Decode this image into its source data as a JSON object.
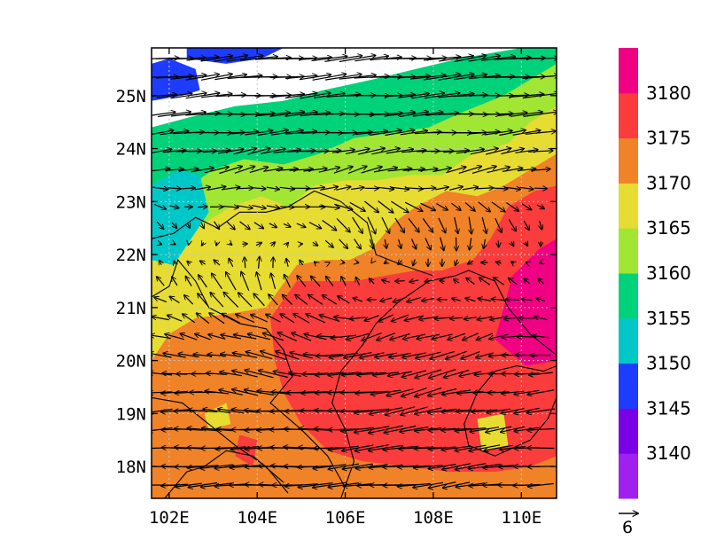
{
  "chart_data": {
    "type": "heatmap",
    "overlay": "wind-vectors",
    "xlim": [
      101.6,
      110.8
    ],
    "ylim": [
      17.4,
      25.9
    ],
    "x_ticks": [
      102,
      104,
      106,
      108,
      110
    ],
    "x_tick_labels": [
      "102E",
      "104E",
      "106E",
      "108E",
      "110E"
    ],
    "y_ticks": [
      18,
      19,
      20,
      21,
      22,
      23,
      24,
      25
    ],
    "y_tick_labels": [
      "18N",
      "19N",
      "20N",
      "21N",
      "22N",
      "23N",
      "24N",
      "25N"
    ],
    "grid": true,
    "colorbar": {
      "levels": [
        3135,
        3140,
        3145,
        3150,
        3155,
        3160,
        3165,
        3170,
        3175,
        3180,
        3185
      ],
      "colors": [
        "#a020f0",
        "#7a00e6",
        "#1e3cff",
        "#00c8c8",
        "#00d27a",
        "#a0e632",
        "#e6dc32",
        "#f08228",
        "#fa3c3c",
        "#f00082"
      ],
      "labels": [
        "3140",
        "3145",
        "3150",
        "3155",
        "3160",
        "3165",
        "3170",
        "3175",
        "3180"
      ]
    },
    "reference_vector": {
      "label": "6"
    },
    "field_regions": [
      {
        "value": 3157,
        "polygon": [
          [
            101.6,
            24.4
          ],
          [
            102.5,
            24.6
          ],
          [
            103.5,
            24.8
          ],
          [
            104.6,
            24.9
          ],
          [
            105.5,
            25.1
          ],
          [
            106.6,
            25.3
          ],
          [
            107.6,
            25.5
          ],
          [
            108.6,
            25.7
          ],
          [
            110.0,
            25.9
          ],
          [
            110.8,
            25.9
          ],
          [
            110.8,
            17.4
          ],
          [
            101.6,
            17.4
          ]
        ]
      },
      {
        "value": 3162,
        "polygon": [
          [
            101.6,
            23.1
          ],
          [
            102.3,
            23.2
          ],
          [
            103.0,
            23.6
          ],
          [
            103.7,
            23.8
          ],
          [
            104.6,
            23.7
          ],
          [
            105.4,
            23.9
          ],
          [
            106.2,
            24.2
          ],
          [
            107.1,
            24.3
          ],
          [
            107.9,
            24.4
          ],
          [
            108.7,
            24.7
          ],
          [
            109.6,
            25.0
          ],
          [
            110.2,
            25.3
          ],
          [
            110.8,
            25.6
          ],
          [
            110.8,
            17.4
          ],
          [
            101.6,
            17.4
          ]
        ]
      },
      {
        "value": 3167,
        "polygon": [
          [
            101.6,
            22.1
          ],
          [
            102.2,
            22.4
          ],
          [
            102.8,
            22.6
          ],
          [
            103.4,
            22.9
          ],
          [
            104.1,
            23.1
          ],
          [
            104.7,
            22.9
          ],
          [
            105.3,
            23.3
          ],
          [
            106.0,
            23.4
          ],
          [
            106.7,
            23.4
          ],
          [
            107.5,
            23.5
          ],
          [
            108.2,
            23.5
          ],
          [
            108.9,
            23.9
          ],
          [
            109.7,
            24.1
          ],
          [
            110.2,
            24.5
          ],
          [
            110.8,
            24.8
          ],
          [
            110.8,
            17.4
          ],
          [
            101.6,
            17.4
          ]
        ]
      },
      {
        "value": 3172,
        "polygon": [
          [
            101.6,
            20.0
          ],
          [
            102.0,
            20.5
          ],
          [
            102.6,
            20.8
          ],
          [
            103.5,
            20.9
          ],
          [
            104.2,
            21.0
          ],
          [
            104.9,
            21.8
          ],
          [
            105.5,
            21.9
          ],
          [
            106.1,
            21.9
          ],
          [
            106.6,
            22.1
          ],
          [
            107.1,
            22.6
          ],
          [
            107.6,
            22.9
          ],
          [
            108.3,
            23.2
          ],
          [
            109.0,
            23.1
          ],
          [
            109.6,
            23.3
          ],
          [
            110.2,
            23.6
          ],
          [
            110.8,
            23.9
          ],
          [
            110.8,
            17.4
          ],
          [
            101.6,
            17.4
          ]
        ]
      },
      {
        "value": 3177,
        "polygon": [
          [
            104.3,
            20.8
          ],
          [
            104.9,
            21.5
          ],
          [
            105.6,
            21.5
          ],
          [
            106.2,
            21.5
          ],
          [
            106.9,
            21.6
          ],
          [
            107.6,
            21.7
          ],
          [
            108.2,
            21.7
          ],
          [
            108.9,
            21.9
          ],
          [
            109.3,
            22.3
          ],
          [
            109.7,
            22.9
          ],
          [
            110.3,
            23.2
          ],
          [
            110.8,
            23.3
          ],
          [
            110.8,
            18.2
          ],
          [
            110.2,
            18.0
          ],
          [
            109.4,
            17.9
          ],
          [
            108.4,
            17.9
          ],
          [
            107.4,
            18.0
          ],
          [
            106.4,
            18.1
          ],
          [
            105.6,
            18.3
          ],
          [
            105.0,
            18.8
          ],
          [
            104.6,
            19.4
          ],
          [
            104.4,
            20.0
          ]
        ]
      },
      {
        "value": 3182,
        "polygon": [
          [
            109.4,
            20.4
          ],
          [
            109.8,
            21.6
          ],
          [
            110.4,
            22.1
          ],
          [
            110.8,
            22.3
          ],
          [
            110.8,
            20.0
          ],
          [
            110.1,
            19.9
          ]
        ]
      },
      {
        "value": 3152,
        "polygon": [
          [
            101.6,
            21.9
          ],
          [
            102.1,
            21.8
          ],
          [
            102.5,
            22.3
          ],
          [
            102.9,
            22.8
          ],
          [
            102.7,
            23.5
          ],
          [
            102.2,
            23.6
          ],
          [
            101.6,
            23.3
          ]
        ]
      },
      {
        "value": 3147,
        "polygon": [
          [
            101.6,
            24.9
          ],
          [
            102.3,
            25.0
          ],
          [
            102.7,
            25.1
          ],
          [
            102.6,
            25.5
          ],
          [
            102.0,
            25.7
          ],
          [
            101.6,
            25.6
          ]
        ]
      },
      {
        "value": 3147,
        "polygon": [
          [
            102.4,
            25.7
          ],
          [
            103.3,
            25.6
          ],
          [
            104.1,
            25.7
          ],
          [
            104.6,
            25.9
          ],
          [
            102.4,
            25.9
          ]
        ]
      },
      {
        "value": 3167,
        "polygon": [
          [
            102.8,
            19.0
          ],
          [
            103.3,
            19.2
          ],
          [
            103.4,
            18.8
          ],
          [
            102.9,
            18.7
          ]
        ]
      },
      {
        "value": 3177,
        "polygon": [
          [
            103.6,
            18.6
          ],
          [
            104.0,
            18.5
          ],
          [
            103.9,
            18.0
          ],
          [
            103.5,
            18.2
          ]
        ]
      },
      {
        "value": 3167,
        "polygon": [
          [
            109.0,
            18.9
          ],
          [
            109.6,
            19.0
          ],
          [
            109.7,
            18.4
          ],
          [
            109.1,
            18.3
          ]
        ]
      }
    ],
    "wind_field": {
      "description": "westerlies north of ~23.5N, anticyclonic flow over the Gulf of Tonkin and southern Vietnam/Laos",
      "samples": [
        {
          "lat": 25.5,
          "u": 6.0,
          "v": 0.6
        },
        {
          "lat": 24.5,
          "u": 5.5,
          "v": 0.3
        },
        {
          "lat": 23.5,
          "u": 3.5,
          "v": 0.8
        },
        {
          "lat": 22.5,
          "u": 0.5,
          "v": -2.0
        },
        {
          "lat": 21.5,
          "u": -1.5,
          "v": 1.5
        },
        {
          "lat": 20.5,
          "u": -3.0,
          "v": 0.0
        },
        {
          "lat": 19.0,
          "u": -4.5,
          "v": -0.3
        },
        {
          "lat": 18.0,
          "u": -5.0,
          "v": -0.4
        }
      ]
    }
  }
}
